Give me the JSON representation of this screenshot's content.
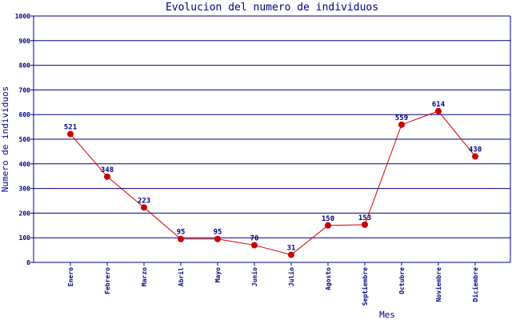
{
  "colors": {
    "text": "#000080",
    "grid": "#000080",
    "axis": "#000080",
    "line": "#cc0000",
    "point": "#cc0000"
  },
  "chart_data": {
    "type": "line",
    "title": "Evolucion del numero de individuos",
    "xlabel": "Mes",
    "ylabel": "Numero de individuos",
    "ylim": [
      0,
      1000
    ],
    "yticks": [
      0,
      100,
      200,
      300,
      400,
      500,
      600,
      700,
      800,
      900,
      1000
    ],
    "grid": true,
    "categories": [
      "Enero",
      "Febrero",
      "Marzo",
      "Abril",
      "Mayo",
      "Junio",
      "Julio",
      "Agosto",
      "Septiembre",
      "Octubre",
      "Noviembre",
      "Diciembre"
    ],
    "series": [
      {
        "values": [
          521,
          348,
          223,
          95,
          95,
          70,
          31,
          150,
          153,
          559,
          614,
          430
        ]
      }
    ],
    "data_labels": [
      "521",
      "348",
      "223",
      "95",
      "95",
      "70",
      "31",
      "150",
      "153",
      "559",
      "614",
      "430"
    ]
  }
}
